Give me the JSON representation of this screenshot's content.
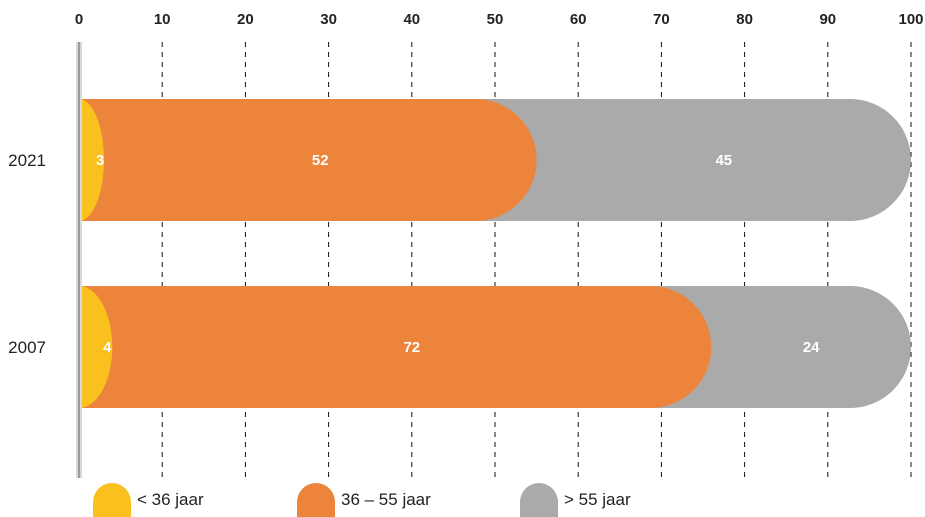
{
  "chart_data": {
    "type": "bar",
    "orientation": "horizontal",
    "stacked": true,
    "categories": [
      "2021",
      "2007"
    ],
    "series": [
      {
        "name": "< 36 jaar",
        "values": [
          3,
          4
        ],
        "color": "#F9C01E"
      },
      {
        "name": "36 – 55 jaar",
        "values": [
          52,
          72
        ],
        "color": "#EC843B"
      },
      {
        "name": "> 55 jaar",
        "values": [
          45,
          24
        ],
        "color": "#ABAAAB"
      }
    ],
    "data_labels": [
      [
        "3",
        "52",
        "45"
      ],
      [
        "4",
        "72",
        "24"
      ]
    ],
    "xlim": [
      0,
      100
    ],
    "xticks": [
      "0",
      "10",
      "20",
      "30",
      "40",
      "50",
      "60",
      "70",
      "80",
      "90",
      "100"
    ],
    "x_axis_position": "top",
    "grid": "vertical dashed",
    "legend": "bottom",
    "title": "",
    "xlabel": "",
    "ylabel": ""
  }
}
